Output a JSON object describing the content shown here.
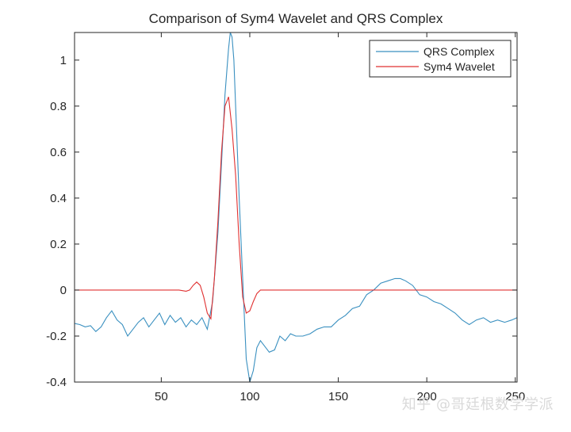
{
  "watermark": "知乎 @哥廷根数学学派",
  "chart_data": {
    "type": "line",
    "title": "Comparison of Sym4 Wavelet and QRS Complex",
    "xlabel": "",
    "ylabel": "",
    "xlim": [
      1,
      251
    ],
    "ylim": [
      -0.4,
      1.12
    ],
    "xticks": [
      50,
      100,
      150,
      200,
      250
    ],
    "yticks": [
      -0.4,
      -0.2,
      0,
      0.2,
      0.4,
      0.6,
      0.8,
      1
    ],
    "ytick_labels": [
      "-0.4",
      "-0.2",
      "0",
      "0.2",
      "0.4",
      "0.6",
      "0.8",
      "1"
    ],
    "grid": false,
    "legend": "top-right",
    "series": [
      {
        "name": "QRS Complex",
        "color": "#3a90c0",
        "x": [
          1,
          4,
          7,
          10,
          13,
          16,
          19,
          22,
          25,
          28,
          31,
          34,
          37,
          40,
          43,
          46,
          49,
          52,
          55,
          58,
          61,
          64,
          67,
          70,
          73,
          76,
          79,
          82,
          84,
          86,
          88,
          89,
          90,
          91,
          92,
          94,
          96,
          98,
          100,
          102,
          104,
          106,
          108,
          111,
          114,
          117,
          120,
          123,
          126,
          130,
          134,
          138,
          142,
          146,
          150,
          154,
          158,
          162,
          166,
          170,
          174,
          178,
          182,
          185,
          188,
          192,
          196,
          200,
          204,
          208,
          212,
          216,
          220,
          224,
          228,
          232,
          236,
          240,
          244,
          248,
          251
        ],
        "y": [
          -0.145,
          -0.15,
          -0.16,
          -0.155,
          -0.18,
          -0.16,
          -0.12,
          -0.09,
          -0.13,
          -0.15,
          -0.2,
          -0.17,
          -0.14,
          -0.12,
          -0.16,
          -0.13,
          -0.1,
          -0.15,
          -0.11,
          -0.14,
          -0.12,
          -0.16,
          -0.13,
          -0.15,
          -0.12,
          -0.17,
          -0.05,
          0.25,
          0.55,
          0.85,
          1.05,
          1.12,
          1.1,
          1.0,
          0.8,
          0.4,
          0.05,
          -0.3,
          -0.4,
          -0.35,
          -0.25,
          -0.22,
          -0.24,
          -0.27,
          -0.26,
          -0.2,
          -0.22,
          -0.19,
          -0.2,
          -0.2,
          -0.19,
          -0.17,
          -0.16,
          -0.16,
          -0.13,
          -0.11,
          -0.08,
          -0.07,
          -0.02,
          0.0,
          0.03,
          0.04,
          0.05,
          0.05,
          0.04,
          0.02,
          -0.02,
          -0.03,
          -0.05,
          -0.06,
          -0.08,
          -0.1,
          -0.13,
          -0.15,
          -0.13,
          -0.12,
          -0.14,
          -0.13,
          -0.14,
          -0.13,
          -0.12
        ]
      },
      {
        "name": "Sym4 Wavelet",
        "color": "#e03030",
        "x": [
          1,
          60,
          64,
          66,
          68,
          70,
          72,
          74,
          76,
          78,
          80,
          82,
          84,
          86,
          88,
          90,
          92,
          94,
          96,
          98,
          100,
          102,
          104,
          106,
          108,
          251
        ],
        "y": [
          0,
          0,
          -0.005,
          0.0,
          0.02,
          0.035,
          0.02,
          -0.03,
          -0.1,
          -0.125,
          0.05,
          0.3,
          0.6,
          0.8,
          0.84,
          0.7,
          0.5,
          0.2,
          -0.03,
          -0.1,
          -0.09,
          -0.05,
          -0.015,
          0.0,
          0.0,
          0.0
        ]
      }
    ]
  }
}
